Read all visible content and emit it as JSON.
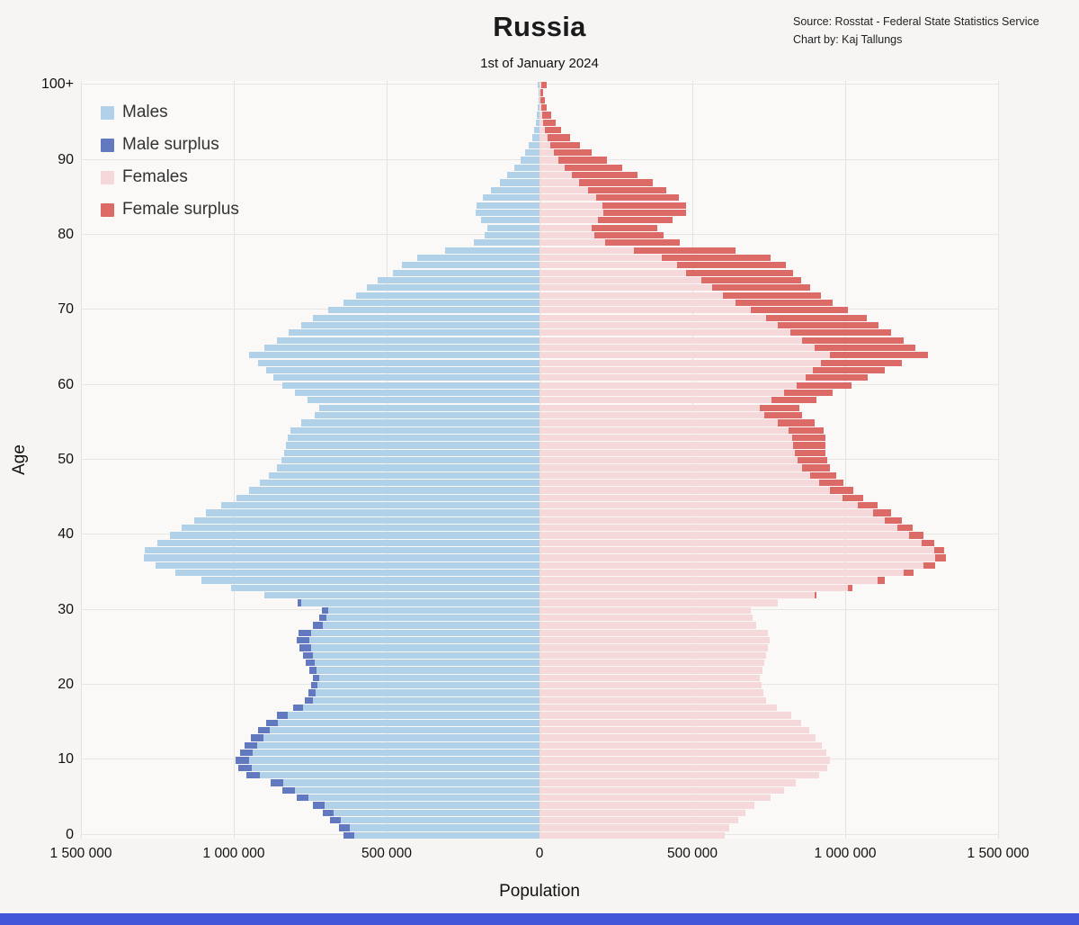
{
  "title": "Russia",
  "subtitle": "1st of January 2024",
  "source": {
    "line1": "Source: Rosstat - Federal State Statistics Service",
    "line2": "Chart by: Kaj Tallungs"
  },
  "axes": {
    "xlabel": "Population",
    "ylabel": "Age",
    "x_ticks": [
      "1 500 000",
      "1 000 000",
      "500 000",
      "0",
      "500 000",
      "1 000 000",
      "1 500 000"
    ],
    "y_ticks": [
      "0",
      "10",
      "20",
      "30",
      "40",
      "50",
      "60",
      "70",
      "80",
      "90",
      "100+"
    ]
  },
  "legend": {
    "items": [
      {
        "label": "Males",
        "color": "#b0d1e7"
      },
      {
        "label": "Male surplus",
        "color": "#6379bf"
      },
      {
        "label": "Females",
        "color": "#f4d8da"
      },
      {
        "label": "Female surplus",
        "color": "#dc6b68"
      }
    ]
  },
  "colors": {
    "background": "#f6f5f3",
    "plot_background": "#faf9f7",
    "gridline": "#e5e3e0",
    "bottom_bar": "#4356d9"
  },
  "chart_data": {
    "type": "bar",
    "subtype": "population_pyramid",
    "title": "Russia",
    "subtitle": "1st of January 2024",
    "xlabel": "Population",
    "ylabel": "Age",
    "x_range": [
      -1500000,
      1500000
    ],
    "grid": true,
    "legend_position": "top-left",
    "ages": {
      "from": 0,
      "to": 100,
      "top_label": "100+"
    },
    "series": [
      {
        "name": "Males",
        "values": [
          640000,
          655000,
          685000,
          710000,
          740000,
          795000,
          840000,
          880000,
          960000,
          985000,
          995000,
          980000,
          965000,
          945000,
          920000,
          893000,
          858000,
          805000,
          768000,
          755000,
          748000,
          742000,
          752000,
          765000,
          775000,
          785000,
          795000,
          788000,
          740000,
          722000,
          712000,
          790000,
          900000,
          1010000,
          1105000,
          1190000,
          1255000,
          1295000,
          1290000,
          1250000,
          1210000,
          1170000,
          1130000,
          1090000,
          1040000,
          990000,
          950000,
          915000,
          885000,
          860000,
          845000,
          835000,
          830000,
          825000,
          815000,
          780000,
          735000,
          720000,
          760000,
          800000,
          840000,
          870000,
          895000,
          920000,
          950000,
          900000,
          860000,
          820000,
          780000,
          740000,
          690000,
          640000,
          600000,
          565000,
          530000,
          480000,
          450000,
          400000,
          310000,
          215000,
          180000,
          170000,
          190000,
          210000,
          205000,
          185000,
          160000,
          130000,
          105000,
          82000,
          62000,
          46000,
          34000,
          25000,
          18000,
          13000,
          9000,
          6000,
          4000,
          3000,
          5000
        ]
      },
      {
        "name": "Females",
        "values": [
          605000,
          620000,
          650000,
          674000,
          703000,
          757000,
          800000,
          838000,
          915000,
          940000,
          950000,
          937000,
          923000,
          904000,
          881000,
          856000,
          824000,
          775000,
          742000,
          731000,
          726000,
          722000,
          728000,
          736000,
          742000,
          748000,
          752000,
          748000,
          710000,
          698000,
          692000,
          780000,
          905000,
          1025000,
          1130000,
          1225000,
          1295000,
          1330000,
          1325000,
          1290000,
          1255000,
          1220000,
          1185000,
          1150000,
          1105000,
          1060000,
          1025000,
          995000,
          970000,
          950000,
          940000,
          935000,
          935000,
          935000,
          930000,
          900000,
          860000,
          850000,
          905000,
          960000,
          1020000,
          1075000,
          1130000,
          1185000,
          1270000,
          1230000,
          1190000,
          1150000,
          1110000,
          1070000,
          1010000,
          960000,
          920000,
          885000,
          855000,
          830000,
          805000,
          755000,
          640000,
          460000,
          405000,
          385000,
          435000,
          480000,
          480000,
          455000,
          415000,
          370000,
          320000,
          270000,
          220000,
          172000,
          132000,
          99000,
          72000,
          52000,
          37000,
          25000,
          17000,
          11000,
          23000
        ]
      }
    ]
  }
}
